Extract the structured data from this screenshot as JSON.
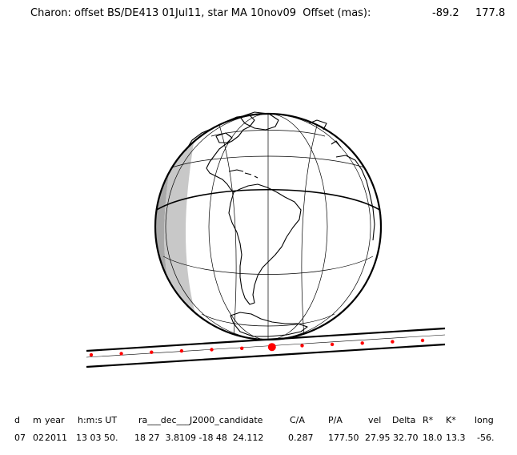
{
  "header": {
    "label": "Charon: offset BS/DE413 01Jul11, star MA 10nov09  Offset (mas):",
    "offset_ra": "-89.2",
    "offset_dec": "177.8"
  },
  "table": {
    "headers": [
      "d",
      "m",
      "year",
      "h:m:s UT",
      "ra___dec___J2000_candidate",
      "C/A",
      "P/A",
      "vel",
      "Delta",
      "R*",
      "K*",
      "long"
    ],
    "values": [
      "07",
      "02",
      "2011",
      "13 03 50.",
      "18 27  3.8109 -18 48  24.112",
      "0.287",
      "177.50",
      "27.95",
      "32.70",
      "18.0",
      "13.3",
      "-56."
    ]
  },
  "map": {
    "projection": "orthographic",
    "globe_fill": "#ffffff",
    "night_shade": "#c8c8c8",
    "twilight_shade": "#a8a8a8",
    "line_color": "#000000",
    "path_color": "#ff0000",
    "shadow_track_points": 12,
    "closest_approach_index": 6
  }
}
